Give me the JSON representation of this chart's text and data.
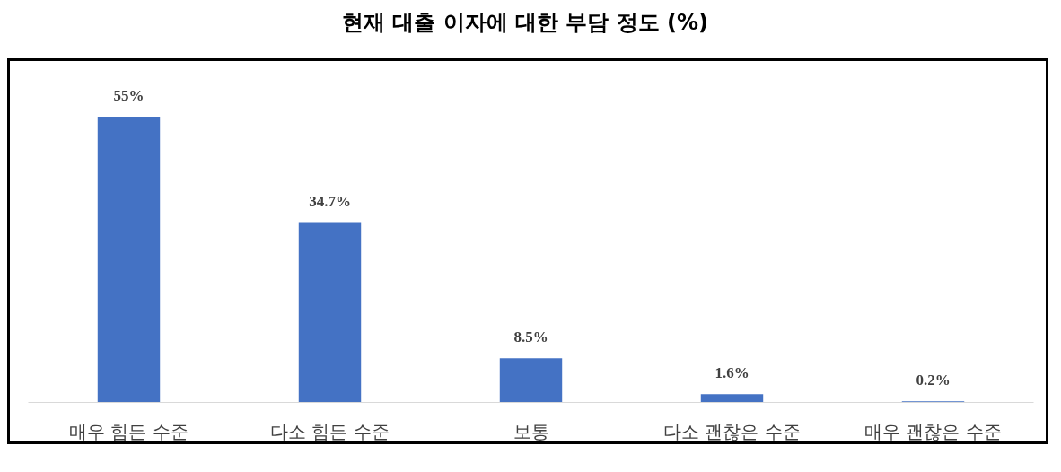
{
  "chart_data": {
    "type": "bar",
    "title": "현재 대출 이자에 대한 부담 정도 (%)",
    "categories": [
      "매우 힘든 수준",
      "다소 힘든 수준",
      "보통",
      "다소 괜찮은 수준",
      "매우 괜찮은 수준"
    ],
    "values": [
      55,
      34.7,
      8.5,
      1.6,
      0.2
    ],
    "value_labels": [
      "55%",
      "34.7%",
      "8.5%",
      "1.6%",
      "0.2%"
    ],
    "color": "#4472c4",
    "grid": false
  }
}
